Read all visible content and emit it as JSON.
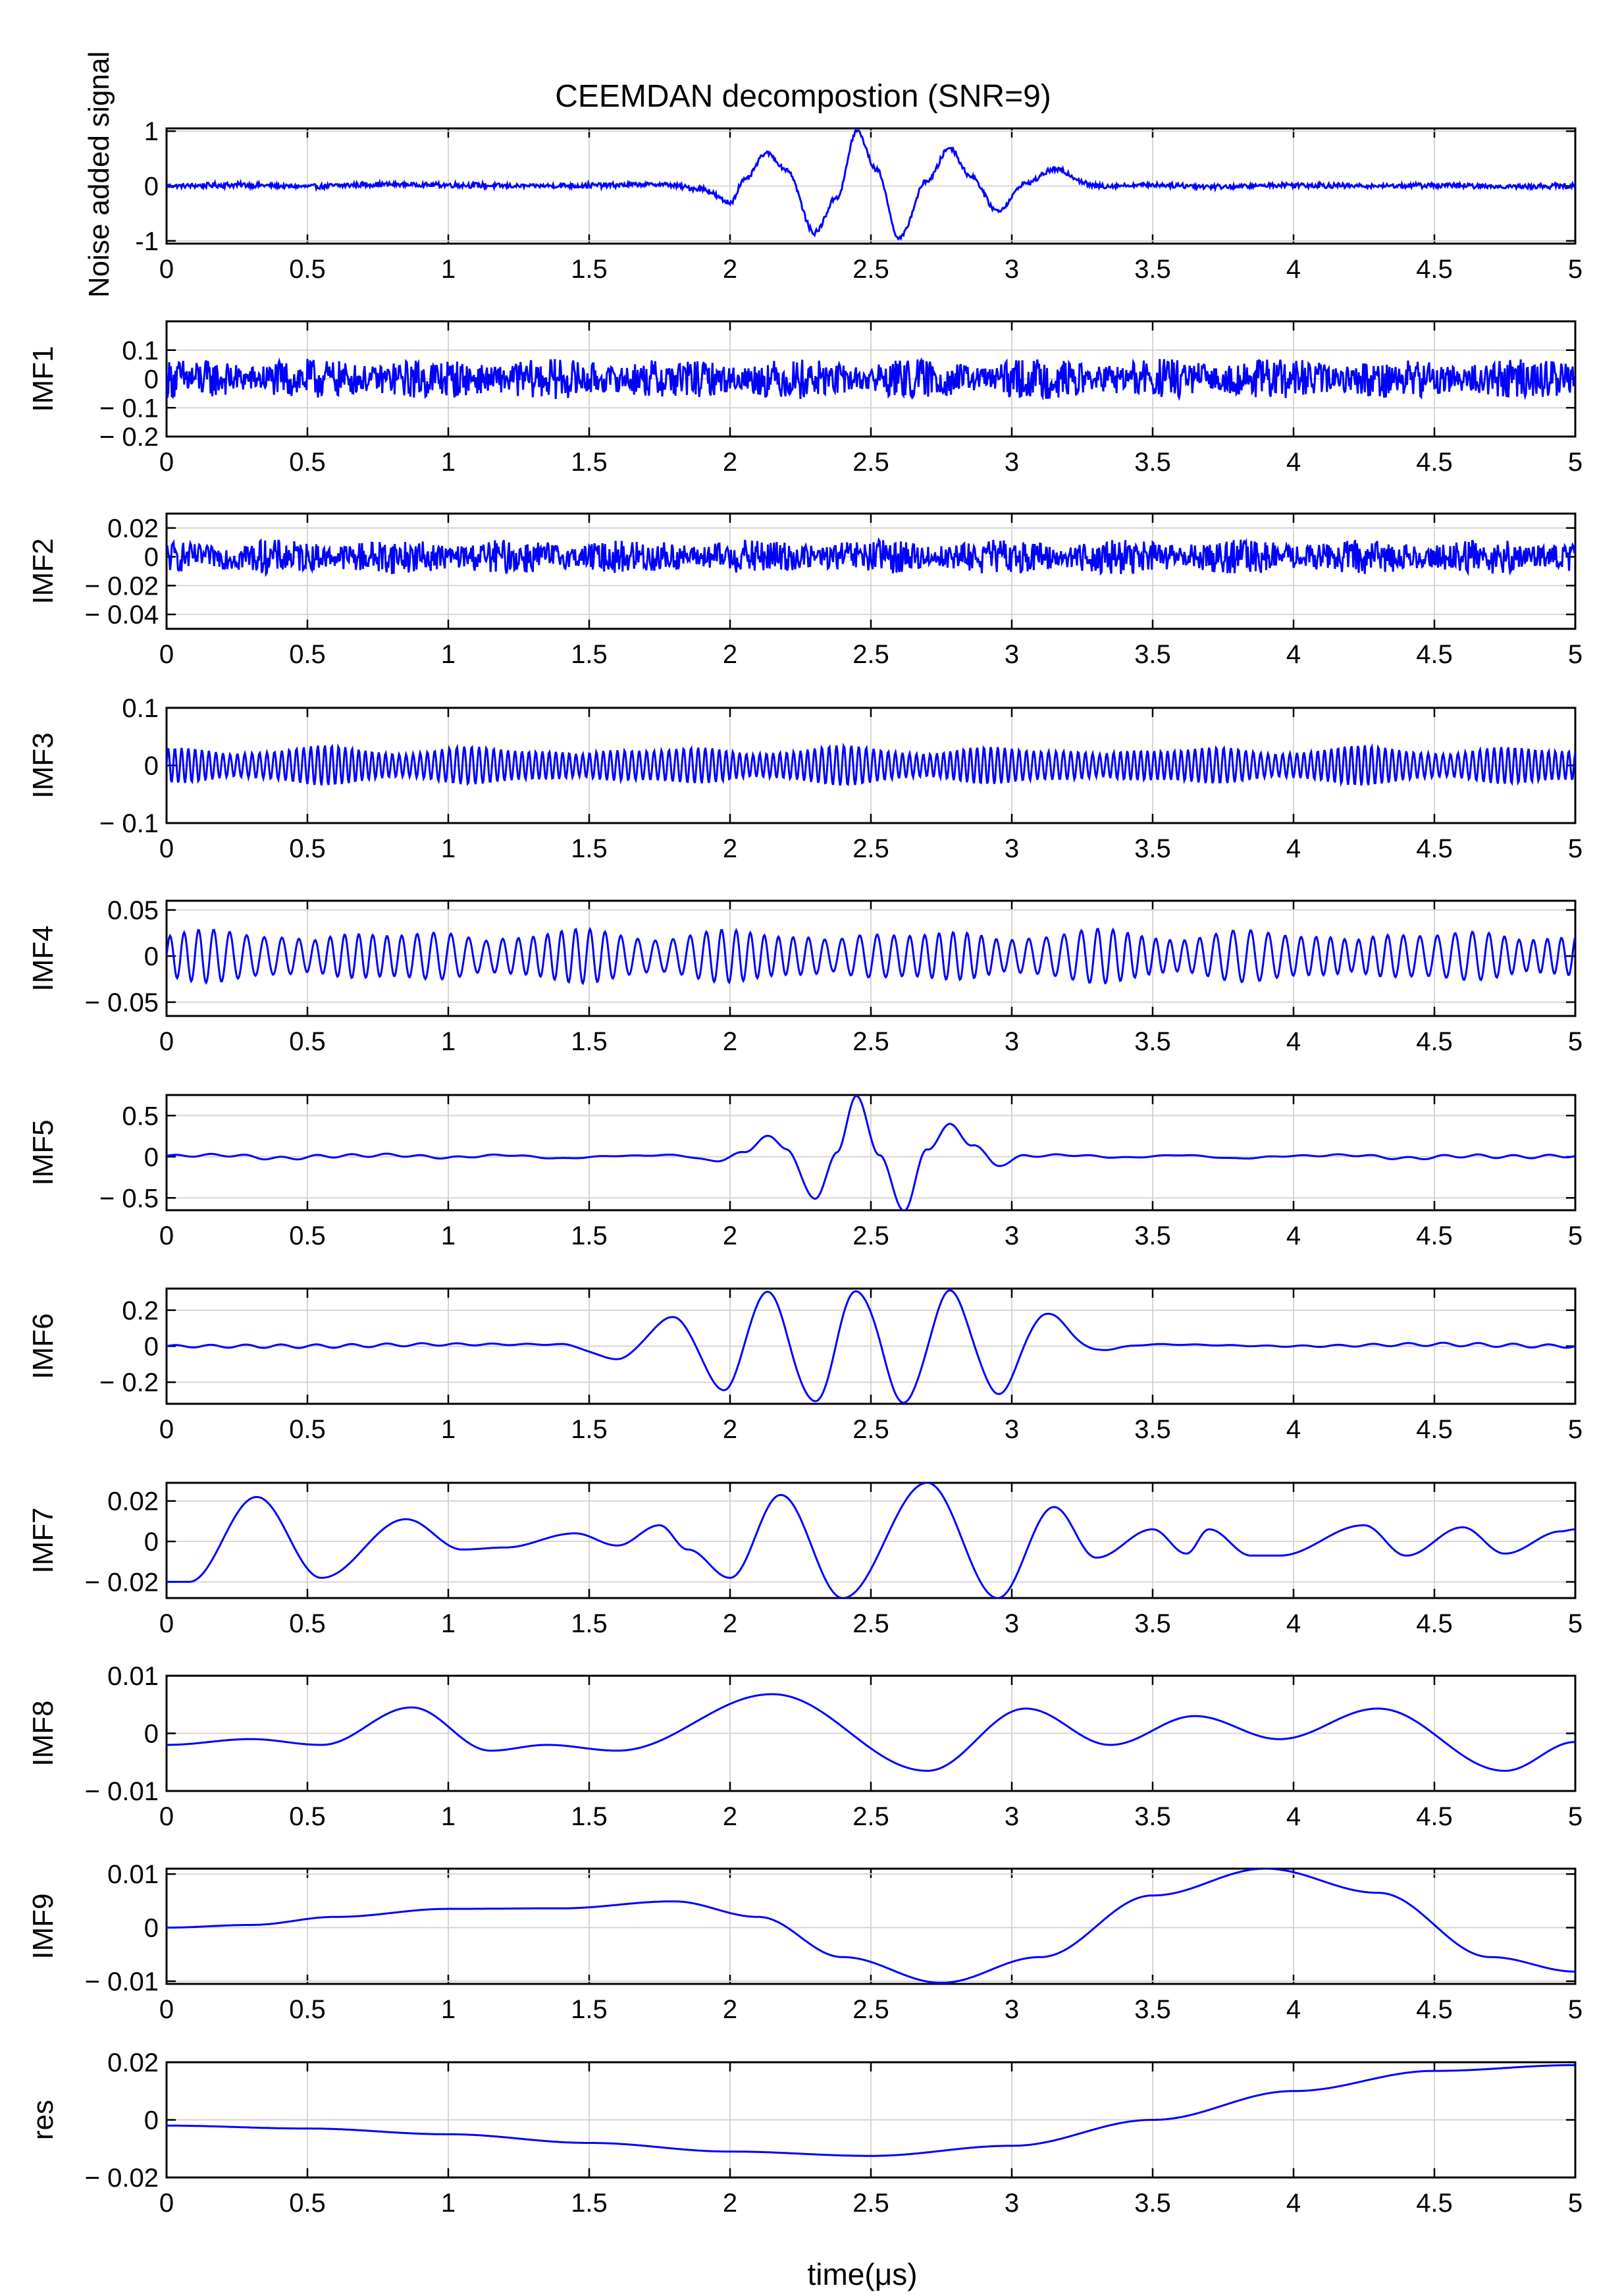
{
  "chart_data": {
    "type": "line",
    "title": "CEEMDAN decompostion (SNR=9)",
    "xlabel": "time(μs)",
    "line_color": "#0000ff",
    "grid": true,
    "xlim": [
      0,
      5
    ],
    "xticks": [
      0,
      0.5,
      1,
      1.5,
      2,
      2.5,
      3,
      3.5,
      4,
      4.5,
      5
    ],
    "xtick_labels": [
      "0",
      "0.5",
      "1",
      "1.5",
      "2",
      "2.5",
      "3",
      "3.5",
      "4",
      "4.5",
      "5"
    ],
    "panels": [
      {
        "ylabel": "Noise added signal",
        "ylim": [
          -1.05,
          1.05
        ],
        "yticks": [
          -1,
          0,
          1
        ],
        "ytick_labels": [
          "-1",
          "0",
          "1"
        ],
        "x": [
          0,
          0.25,
          0.5,
          0.75,
          1,
          1.25,
          1.5,
          1.75,
          1.9,
          2.0,
          2.05,
          2.13,
          2.2,
          2.3,
          2.38,
          2.45,
          2.52,
          2.6,
          2.7,
          2.78,
          2.85,
          2.95,
          3.05,
          3.15,
          3.3,
          3.5,
          3.75,
          4,
          4.25,
          4.5,
          4.75,
          5
        ],
        "y": [
          0,
          0.02,
          -0.01,
          0.03,
          0.02,
          0,
          0.01,
          0.03,
          -0.05,
          -0.3,
          0.1,
          0.6,
          0.3,
          -0.85,
          -0.2,
          1.0,
          0.3,
          -0.95,
          0.1,
          0.7,
          0.2,
          -0.45,
          0.05,
          0.3,
          0,
          0.02,
          -0.01,
          0.02,
          0,
          0.01,
          -0.01,
          0
        ],
        "noise": 0.05
      },
      {
        "ylabel": "IMF1",
        "ylim": [
          -0.2,
          0.2
        ],
        "yticks": [
          -0.2,
          -0.1,
          0,
          0.1
        ],
        "ytick_labels": [
          "− 0.2",
          "− 0.1",
          "0",
          "0.1"
        ],
        "x": [
          0,
          5
        ],
        "y": [
          0,
          0
        ],
        "noise": 0.07
      },
      {
        "ylabel": "IMF2",
        "ylim": [
          -0.05,
          0.03
        ],
        "yticks": [
          -0.04,
          -0.02,
          0,
          0.02
        ],
        "ytick_labels": [
          "− 0.04",
          "− 0.02",
          "0",
          "0.02"
        ],
        "x": [
          0,
          5
        ],
        "y": [
          0,
          0
        ],
        "noise": 0.012
      },
      {
        "ylabel": "IMF3",
        "ylim": [
          -0.1,
          0.1
        ],
        "yticks": [
          -0.1,
          0,
          0.1
        ],
        "ytick_labels": [
          "− 0.1",
          "0",
          "0.1"
        ],
        "x": [
          0,
          5
        ],
        "y": [
          0,
          0
        ],
        "amplitude": 0.035,
        "frequency": 40
      },
      {
        "ylabel": "IMF4",
        "ylim": [
          -0.065,
          0.06
        ],
        "yticks": [
          -0.05,
          0,
          0.05
        ],
        "ytick_labels": [
          "− 0.05",
          "0",
          "0.05"
        ],
        "x": [
          0,
          5
        ],
        "y": [
          0,
          0
        ],
        "amplitude": 0.03,
        "frequency": 18
      },
      {
        "ylabel": "IMF5",
        "ylim": [
          -0.65,
          0.75
        ],
        "yticks": [
          -0.5,
          0,
          0.5
        ],
        "ytick_labels": [
          "− 0.5",
          "0",
          "0.5"
        ],
        "x": [
          0,
          0.2,
          0.4,
          0.6,
          0.8,
          1,
          1.2,
          1.4,
          1.6,
          1.8,
          1.95,
          2.05,
          2.13,
          2.2,
          2.3,
          2.38,
          2.45,
          2.53,
          2.62,
          2.7,
          2.78,
          2.86,
          2.95,
          3.05,
          3.2,
          3.4,
          3.6,
          3.8,
          4,
          4.2,
          4.4,
          4.6,
          4.8,
          5
        ],
        "y": [
          0.01,
          0.02,
          -0.02,
          0.01,
          0.02,
          -0.01,
          0.02,
          -0.02,
          0.01,
          0.02,
          -0.05,
          0.05,
          0.25,
          0.1,
          -0.52,
          0.05,
          0.75,
          0,
          -0.65,
          0.1,
          0.38,
          0.15,
          -0.1,
          0.01,
          0.02,
          -0.01,
          0.02,
          -0.02,
          0.01,
          0.02,
          -0.02,
          0.01,
          0,
          0.01
        ],
        "ripple": 0.02
      },
      {
        "ylabel": "IMF6",
        "ylim": [
          -0.32,
          0.32
        ],
        "yticks": [
          -0.2,
          0,
          0.2
        ],
        "ytick_labels": [
          "− 0.2",
          "0",
          "0.2"
        ],
        "x": [
          0,
          0.5,
          1,
          1.4,
          1.6,
          1.8,
          1.98,
          2.13,
          2.3,
          2.45,
          2.62,
          2.78,
          2.95,
          3.12,
          3.3,
          3.5,
          4,
          4.5,
          5
        ],
        "y": [
          0,
          0,
          0.01,
          0.01,
          -0.07,
          0.16,
          -0.24,
          0.3,
          -0.31,
          0.31,
          -0.31,
          0.3,
          -0.26,
          0.18,
          -0.02,
          0.01,
          0,
          0.01,
          0
        ],
        "ripple": 0.01
      },
      {
        "ylabel": "IMF7",
        "ylim": [
          -0.028,
          0.029
        ],
        "yticks": [
          -0.02,
          0,
          0.02
        ],
        "ytick_labels": [
          "− 0.02",
          "0",
          "0.02"
        ],
        "x": [
          0,
          0.08,
          0.32,
          0.55,
          0.85,
          1.05,
          1.2,
          1.45,
          1.6,
          1.75,
          1.85,
          2.0,
          2.18,
          2.4,
          2.7,
          2.95,
          3.15,
          3.3,
          3.5,
          3.62,
          3.7,
          3.85,
          3.95,
          4.25,
          4.4,
          4.6,
          4.75,
          4.95,
          5
        ],
        "y": [
          -0.02,
          -0.02,
          0.022,
          -0.018,
          0.011,
          -0.004,
          -0.003,
          0.004,
          -0.002,
          0.008,
          -0.004,
          -0.018,
          0.023,
          -0.028,
          0.029,
          -0.028,
          0.017,
          -0.008,
          0.006,
          -0.006,
          0.006,
          -0.007,
          -0.007,
          0.008,
          -0.007,
          0.007,
          -0.006,
          0.005,
          0.006
        ]
      },
      {
        "ylabel": "IMF8",
        "ylim": [
          -0.01,
          0.01
        ],
        "yticks": [
          -0.01,
          0,
          0.01
        ],
        "ytick_labels": [
          "− 0.01",
          "0",
          "0.01"
        ],
        "x": [
          0,
          0.3,
          0.55,
          0.87,
          1.15,
          1.35,
          1.6,
          2.15,
          2.7,
          3.05,
          3.35,
          3.65,
          3.95,
          4.3,
          4.75,
          5
        ],
        "y": [
          -0.002,
          -0.001,
          -0.002,
          0.0045,
          -0.003,
          -0.002,
          -0.003,
          0.0068,
          -0.0065,
          0.0043,
          -0.002,
          0.003,
          -0.001,
          0.0043,
          -0.0065,
          -0.0015
        ]
      },
      {
        "ylabel": "IMF9",
        "ylim": [
          -0.0105,
          0.011
        ],
        "yticks": [
          -0.01,
          0,
          0.01
        ],
        "ytick_labels": [
          "− 0.01",
          "0",
          "0.01"
        ],
        "x": [
          0,
          0.3,
          0.6,
          1,
          1.4,
          1.8,
          2.1,
          2.4,
          2.75,
          3.1,
          3.5,
          3.9,
          4.3,
          4.7,
          5
        ],
        "y": [
          0,
          0.0005,
          0.002,
          0.0035,
          0.0036,
          0.0049,
          0.002,
          -0.0055,
          -0.0103,
          -0.0055,
          0.006,
          0.011,
          0.0065,
          -0.0055,
          -0.0082
        ]
      },
      {
        "ylabel": "res",
        "ylim": [
          -0.02,
          0.02
        ],
        "yticks": [
          -0.02,
          0,
          0.02
        ],
        "ytick_labels": [
          "− 0.02",
          "0",
          "0.02"
        ],
        "x": [
          0,
          0.5,
          1,
          1.5,
          2,
          2.5,
          3,
          3.5,
          4,
          4.5,
          5
        ],
        "y": [
          -0.002,
          -0.003,
          -0.005,
          -0.008,
          -0.011,
          -0.0125,
          -0.009,
          0,
          0.01,
          0.017,
          0.019
        ]
      }
    ]
  }
}
